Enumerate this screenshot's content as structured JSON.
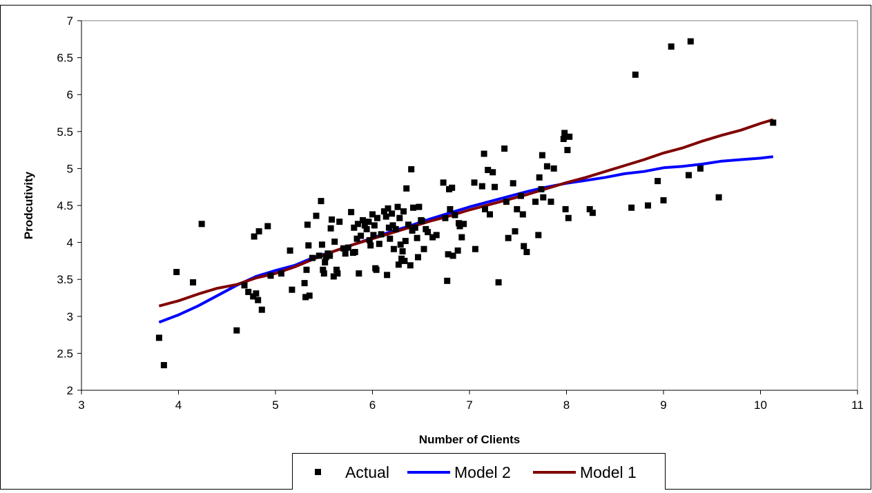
{
  "chart_data": {
    "type": "scatter",
    "title": "",
    "xlabel": "Number of Clients",
    "ylabel": "Prodcutivity",
    "xlim": [
      3,
      11
    ],
    "ylim": [
      2,
      7
    ],
    "xticks": [
      "3",
      "4",
      "5",
      "6",
      "7",
      "8",
      "9",
      "10",
      "11"
    ],
    "yticks": [
      "2",
      "2.5",
      "3",
      "3.5",
      "4",
      "4.5",
      "5",
      "5.5",
      "6",
      "6.5",
      "7"
    ],
    "grid": false,
    "legend_position": "bottom",
    "series": [
      {
        "name": "Actual",
        "kind": "markers",
        "color": "#000000",
        "points": [
          [
            3.8,
            2.71
          ],
          [
            3.85,
            2.34
          ],
          [
            3.98,
            3.6
          ],
          [
            4.15,
            3.46
          ],
          [
            4.24,
            4.25
          ],
          [
            4.6,
            2.81
          ],
          [
            4.68,
            3.42
          ],
          [
            4.72,
            3.33
          ],
          [
            4.77,
            3.27
          ],
          [
            4.78,
            4.08
          ],
          [
            4.8,
            3.31
          ],
          [
            4.82,
            3.22
          ],
          [
            4.83,
            4.15
          ],
          [
            4.86,
            3.09
          ],
          [
            4.92,
            4.22
          ],
          [
            4.95,
            3.55
          ],
          [
            5.06,
            3.58
          ],
          [
            5.15,
            3.89
          ],
          [
            5.17,
            3.36
          ],
          [
            5.3,
            3.45
          ],
          [
            5.31,
            3.26
          ],
          [
            5.32,
            3.63
          ],
          [
            5.33,
            4.24
          ],
          [
            5.34,
            3.96
          ],
          [
            5.35,
            3.28
          ],
          [
            5.38,
            3.79
          ],
          [
            5.42,
            4.36
          ],
          [
            5.45,
            3.82
          ],
          [
            5.47,
            4.56
          ],
          [
            5.48,
            3.97
          ],
          [
            5.49,
            3.63
          ],
          [
            5.5,
            3.58
          ],
          [
            5.51,
            3.73
          ],
          [
            5.52,
            3.8
          ],
          [
            5.54,
            3.85
          ],
          [
            5.56,
            3.82
          ],
          [
            5.57,
            4.19
          ],
          [
            5.58,
            4.31
          ],
          [
            5.6,
            3.54
          ],
          [
            5.61,
            4.01
          ],
          [
            5.63,
            3.63
          ],
          [
            5.64,
            3.58
          ],
          [
            5.66,
            4.28
          ],
          [
            5.7,
            3.92
          ],
          [
            5.72,
            3.85
          ],
          [
            5.75,
            3.93
          ],
          [
            5.78,
            4.41
          ],
          [
            5.8,
            3.86
          ],
          [
            5.81,
            4.2
          ],
          [
            5.82,
            3.87
          ],
          [
            5.84,
            4.05
          ],
          [
            5.85,
            4.25
          ],
          [
            5.86,
            3.58
          ],
          [
            5.88,
            4.09
          ],
          [
            5.9,
            4.3
          ],
          [
            5.92,
            4.23
          ],
          [
            5.94,
            4.18
          ],
          [
            5.96,
            4.28
          ],
          [
            5.97,
            4.03
          ],
          [
            5.98,
            3.96
          ],
          [
            6.0,
            4.38
          ],
          [
            6.01,
            4.1
          ],
          [
            6.02,
            4.23
          ],
          [
            6.03,
            3.65
          ],
          [
            6.04,
            3.63
          ],
          [
            6.05,
            4.33
          ],
          [
            6.07,
            3.98
          ],
          [
            6.09,
            4.11
          ],
          [
            6.12,
            4.42
          ],
          [
            6.14,
            4.35
          ],
          [
            6.15,
            3.56
          ],
          [
            6.16,
            4.46
          ],
          [
            6.17,
            4.2
          ],
          [
            6.18,
            4.05
          ],
          [
            6.2,
            4.39
          ],
          [
            6.21,
            4.23
          ],
          [
            6.22,
            3.91
          ],
          [
            6.24,
            4.18
          ],
          [
            6.26,
            4.48
          ],
          [
            6.27,
            3.7
          ],
          [
            6.28,
            4.33
          ],
          [
            6.29,
            3.97
          ],
          [
            6.3,
            3.78
          ],
          [
            6.31,
            3.88
          ],
          [
            6.32,
            4.42
          ],
          [
            6.33,
            3.75
          ],
          [
            6.34,
            4.02
          ],
          [
            6.35,
            4.73
          ],
          [
            6.37,
            4.24
          ],
          [
            6.39,
            3.69
          ],
          [
            6.4,
            4.99
          ],
          [
            6.41,
            4.16
          ],
          [
            6.42,
            4.47
          ],
          [
            6.44,
            4.2
          ],
          [
            6.46,
            4.06
          ],
          [
            6.47,
            3.8
          ],
          [
            6.48,
            4.48
          ],
          [
            6.5,
            4.3
          ],
          [
            6.51,
            4.29
          ],
          [
            6.53,
            3.91
          ],
          [
            6.55,
            4.18
          ],
          [
            6.57,
            4.14
          ],
          [
            6.62,
            4.07
          ],
          [
            6.66,
            4.1
          ],
          [
            6.73,
            4.81
          ],
          [
            6.75,
            4.33
          ],
          [
            6.77,
            3.48
          ],
          [
            6.78,
            3.84
          ],
          [
            6.79,
            4.72
          ],
          [
            6.8,
            4.45
          ],
          [
            6.82,
            4.74
          ],
          [
            6.83,
            3.82
          ],
          [
            6.85,
            4.37
          ],
          [
            6.88,
            3.89
          ],
          [
            6.89,
            4.26
          ],
          [
            6.9,
            4.22
          ],
          [
            6.92,
            4.07
          ],
          [
            6.94,
            4.25
          ],
          [
            7.05,
            4.81
          ],
          [
            7.06,
            3.91
          ],
          [
            7.13,
            4.76
          ],
          [
            7.15,
            5.2
          ],
          [
            7.16,
            4.45
          ],
          [
            7.19,
            4.98
          ],
          [
            7.21,
            4.38
          ],
          [
            7.24,
            4.95
          ],
          [
            7.26,
            4.75
          ],
          [
            7.3,
            3.46
          ],
          [
            7.36,
            5.27
          ],
          [
            7.38,
            4.55
          ],
          [
            7.4,
            4.06
          ],
          [
            7.45,
            4.8
          ],
          [
            7.47,
            4.15
          ],
          [
            7.49,
            4.45
          ],
          [
            7.53,
            4.63
          ],
          [
            7.55,
            4.38
          ],
          [
            7.56,
            3.95
          ],
          [
            7.59,
            3.87
          ],
          [
            7.68,
            4.55
          ],
          [
            7.71,
            4.1
          ],
          [
            7.72,
            4.88
          ],
          [
            7.74,
            4.72
          ],
          [
            7.75,
            5.18
          ],
          [
            7.76,
            4.61
          ],
          [
            7.8,
            5.03
          ],
          [
            7.84,
            4.55
          ],
          [
            7.87,
            5.0
          ],
          [
            7.97,
            5.4
          ],
          [
            7.98,
            5.48
          ],
          [
            7.99,
            4.45
          ],
          [
            8.01,
            5.25
          ],
          [
            8.02,
            4.33
          ],
          [
            8.03,
            5.43
          ],
          [
            8.24,
            4.45
          ],
          [
            8.27,
            4.4
          ],
          [
            8.67,
            4.47
          ],
          [
            8.71,
            6.27
          ],
          [
            8.84,
            4.5
          ],
          [
            8.94,
            4.83
          ],
          [
            9.0,
            4.57
          ],
          [
            9.08,
            6.65
          ],
          [
            9.26,
            4.91
          ],
          [
            9.28,
            6.72
          ],
          [
            9.38,
            5.0
          ],
          [
            9.57,
            4.61
          ],
          [
            10.13,
            5.62
          ]
        ]
      },
      {
        "name": "Model 2",
        "kind": "line",
        "color": "#0000ff",
        "points": [
          [
            3.8,
            2.92
          ],
          [
            4.0,
            3.02
          ],
          [
            4.2,
            3.14
          ],
          [
            4.4,
            3.28
          ],
          [
            4.6,
            3.42
          ],
          [
            4.8,
            3.54
          ],
          [
            5.0,
            3.62
          ],
          [
            5.2,
            3.69
          ],
          [
            5.4,
            3.8
          ],
          [
            5.6,
            3.88
          ],
          [
            5.8,
            3.97
          ],
          [
            6.0,
            4.06
          ],
          [
            6.2,
            4.15
          ],
          [
            6.4,
            4.23
          ],
          [
            6.6,
            4.32
          ],
          [
            6.8,
            4.4
          ],
          [
            7.0,
            4.48
          ],
          [
            7.2,
            4.55
          ],
          [
            7.4,
            4.62
          ],
          [
            7.6,
            4.69
          ],
          [
            7.8,
            4.75
          ],
          [
            8.0,
            4.8
          ],
          [
            8.2,
            4.84
          ],
          [
            8.4,
            4.88
          ],
          [
            8.6,
            4.93
          ],
          [
            8.8,
            4.96
          ],
          [
            9.0,
            5.01
          ],
          [
            9.2,
            5.03
          ],
          [
            9.4,
            5.06
          ],
          [
            9.6,
            5.1
          ],
          [
            9.8,
            5.12
          ],
          [
            10.0,
            5.14
          ],
          [
            10.13,
            5.16
          ]
        ]
      },
      {
        "name": "Model 1",
        "kind": "line",
        "color": "#800000",
        "points": [
          [
            3.8,
            3.14
          ],
          [
            4.0,
            3.21
          ],
          [
            4.2,
            3.3
          ],
          [
            4.4,
            3.38
          ],
          [
            4.6,
            3.43
          ],
          [
            4.8,
            3.52
          ],
          [
            5.0,
            3.58
          ],
          [
            5.2,
            3.67
          ],
          [
            5.4,
            3.78
          ],
          [
            5.6,
            3.88
          ],
          [
            5.8,
            3.97
          ],
          [
            6.0,
            4.05
          ],
          [
            6.2,
            4.13
          ],
          [
            6.4,
            4.21
          ],
          [
            6.6,
            4.29
          ],
          [
            6.8,
            4.36
          ],
          [
            7.0,
            4.44
          ],
          [
            7.2,
            4.51
          ],
          [
            7.4,
            4.58
          ],
          [
            7.6,
            4.65
          ],
          [
            7.8,
            4.73
          ],
          [
            8.0,
            4.81
          ],
          [
            8.2,
            4.88
          ],
          [
            8.4,
            4.96
          ],
          [
            8.6,
            5.04
          ],
          [
            8.8,
            5.12
          ],
          [
            9.0,
            5.21
          ],
          [
            9.2,
            5.28
          ],
          [
            9.4,
            5.37
          ],
          [
            9.6,
            5.45
          ],
          [
            9.8,
            5.52
          ],
          [
            10.0,
            5.61
          ],
          [
            10.13,
            5.66
          ]
        ]
      }
    ]
  }
}
